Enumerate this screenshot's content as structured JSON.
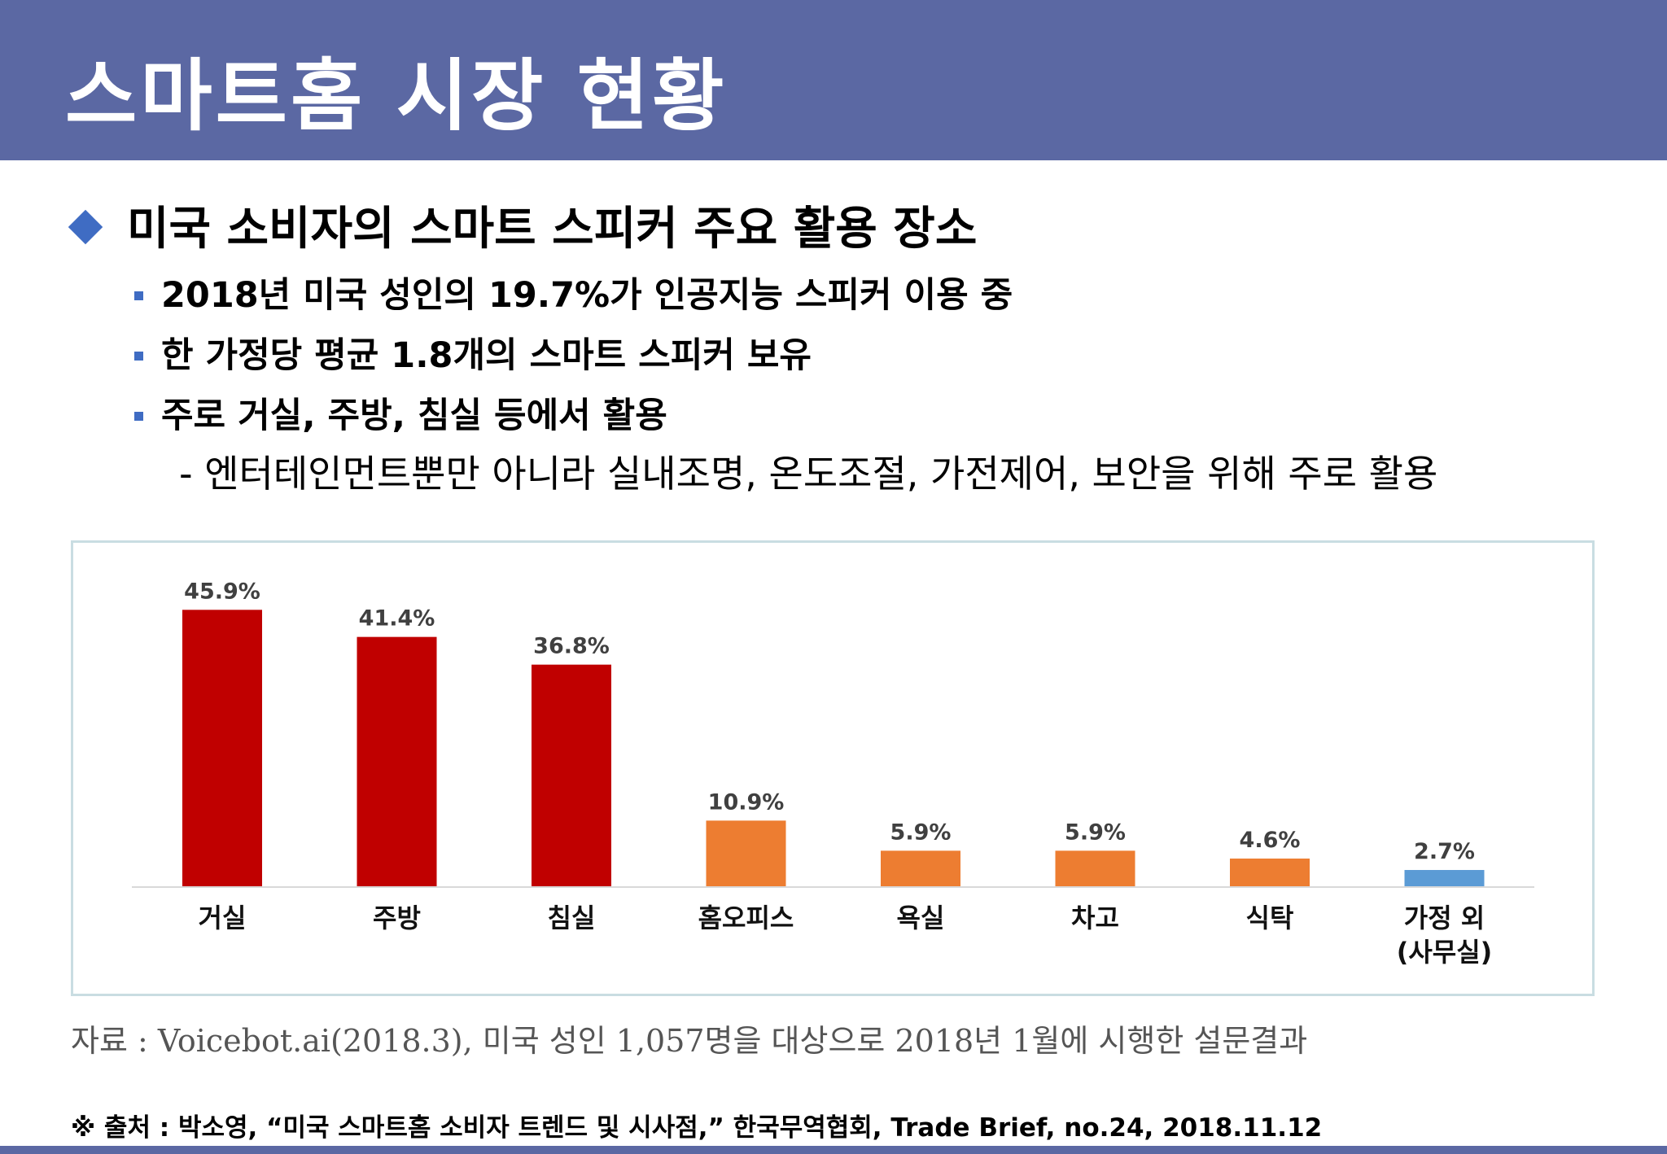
{
  "header": {
    "title": "스마트홈 시장 현황"
  },
  "heading": "미국 소비자의 스마트 스피커 주요 활용 장소",
  "bullets": [
    "2018년 미국 성인의 19.7%가 인공지능 스피커 이용 중",
    "한 가정당 평균 1.8개의 스마트 스피커 보유",
    "주로 거실, 주방, 침실 등에서 활용"
  ],
  "sub_bullet": "- 엔터테인먼트뿐만 아니라 실내조명, 온도조절, 가전제어, 보안을 위해 주로 활용",
  "chart_data": {
    "type": "bar",
    "categories": [
      "거실",
      "주방",
      "침실",
      "홈오피스",
      "욕실",
      "차고",
      "식탁",
      "가정 외\n(사무실)"
    ],
    "values": [
      45.9,
      41.4,
      36.8,
      10.9,
      5.9,
      5.9,
      4.6,
      2.7
    ],
    "value_labels": [
      "45.9%",
      "41.4%",
      "36.8%",
      "10.9%",
      "5.9%",
      "5.9%",
      "4.6%",
      "2.7%"
    ],
    "colors": [
      "#c00000",
      "#c00000",
      "#c00000",
      "#ed7d31",
      "#ed7d31",
      "#ed7d31",
      "#ed7d31",
      "#5b9bd5"
    ],
    "title": "",
    "xlabel": "",
    "ylabel": "",
    "ylim": [
      0,
      50
    ],
    "grid": false,
    "legend": "none"
  },
  "source": "자료 : Voicebot.ai(2018.3), 미국 성인 1,057명을 대상으로 2018년 1월에 시행한 설문결과",
  "footnote": "※ 출처 : 박소영, “미국 스마트홈 소비자 트렌드 및 시사점,” 한국무역협회, Trade Brief, no.24, 2018.11.12"
}
